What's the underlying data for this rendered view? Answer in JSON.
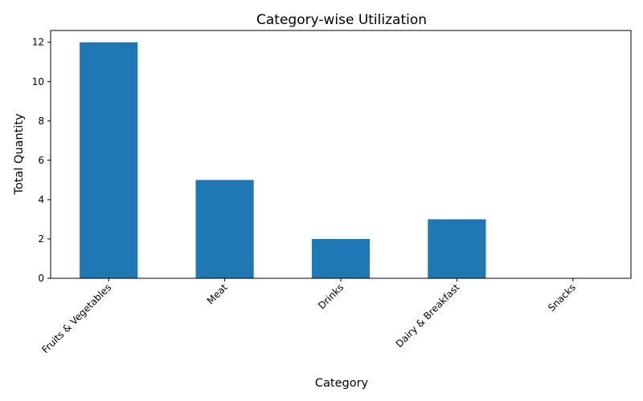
{
  "chart_data": {
    "type": "bar",
    "title": "Category-wise Utilization",
    "xlabel": "Category",
    "ylabel": "Total Quantity",
    "categories": [
      "Fruits & Vegetables",
      "Meat",
      "Drinks",
      "Dairy & Breakfast",
      "Snacks"
    ],
    "values": [
      12,
      5,
      2,
      3,
      0
    ],
    "ylim": [
      0,
      12.6
    ],
    "yticks": [
      0,
      2,
      4,
      6,
      8,
      10,
      12
    ],
    "grid": false,
    "bar_color": "#1f77b4"
  }
}
